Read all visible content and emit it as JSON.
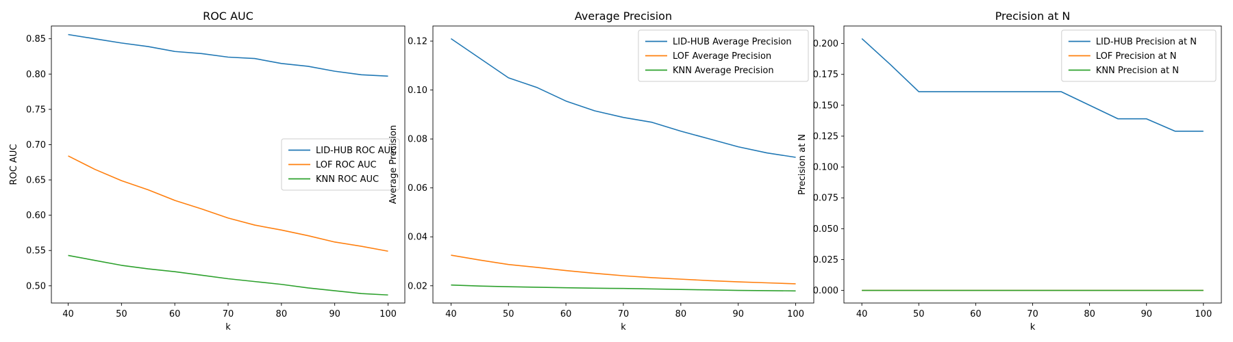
{
  "chart_data": [
    {
      "type": "line",
      "title": "ROC AUC",
      "xlabel": "k",
      "ylabel": "ROC AUC",
      "x": [
        40,
        45,
        50,
        55,
        60,
        65,
        70,
        75,
        80,
        85,
        90,
        95,
        100
      ],
      "xlim": [
        36.85,
        103.15
      ],
      "ylim": [
        0.4756,
        0.8681
      ],
      "xticks": [
        "40",
        "50",
        "60",
        "70",
        "80",
        "90",
        "100"
      ],
      "yticks": [
        "0.50",
        "0.55",
        "0.60",
        "0.65",
        "0.70",
        "0.75",
        "0.80",
        "0.85"
      ],
      "legend_loc": "center-right",
      "series": [
        {
          "name": "LID-HUB ROC AUC",
          "color": "#1f77b4",
          "values": [
            0.856,
            0.85,
            0.844,
            0.839,
            0.832,
            0.829,
            0.824,
            0.822,
            0.815,
            0.811,
            0.804,
            0.799,
            0.797
          ]
        },
        {
          "name": "LOF ROC AUC",
          "color": "#ff7f0e",
          "values": [
            0.684,
            0.665,
            0.649,
            0.636,
            0.621,
            0.609,
            0.596,
            0.586,
            0.579,
            0.571,
            0.562,
            0.556,
            0.549
          ]
        },
        {
          "name": "KNN ROC AUC",
          "color": "#2ca02c",
          "values": [
            0.543,
            0.536,
            0.529,
            0.524,
            0.52,
            0.515,
            0.51,
            0.506,
            0.502,
            0.497,
            0.493,
            0.489,
            0.487
          ]
        }
      ]
    },
    {
      "type": "line",
      "title": "Average Precision",
      "xlabel": "k",
      "ylabel": "Average Precision",
      "x": [
        40,
        45,
        50,
        55,
        60,
        65,
        70,
        75,
        80,
        85,
        90,
        95,
        100
      ],
      "xlim": [
        36.85,
        103.15
      ],
      "ylim": [
        0.01295,
        0.12617
      ],
      "xticks": [
        "40",
        "50",
        "60",
        "70",
        "80",
        "90",
        "100"
      ],
      "yticks": [
        "0.02",
        "0.04",
        "0.06",
        "0.08",
        "0.10",
        "0.12"
      ],
      "legend_loc": "upper-right",
      "series": [
        {
          "name": "LID-HUB Average Precision",
          "color": "#1f77b4",
          "values": [
            0.121,
            0.113,
            0.105,
            0.101,
            0.0955,
            0.0915,
            0.0888,
            0.0868,
            0.0832,
            0.08,
            0.0768,
            0.0743,
            0.0725
          ]
        },
        {
          "name": "LOF Average Precision",
          "color": "#ff7f0e",
          "values": [
            0.0325,
            0.0305,
            0.0287,
            0.0275,
            0.0262,
            0.0251,
            0.0241,
            0.0233,
            0.0227,
            0.0221,
            0.0216,
            0.0212,
            0.0208
          ]
        },
        {
          "name": "KNN Average Precision",
          "color": "#2ca02c",
          "values": [
            0.0203,
            0.0199,
            0.0196,
            0.0194,
            0.0192,
            0.019,
            0.0189,
            0.0187,
            0.0185,
            0.0183,
            0.0181,
            0.018,
            0.0179
          ]
        }
      ]
    },
    {
      "type": "line",
      "title": "Precision at N",
      "xlabel": "k",
      "ylabel": "Precision at N",
      "x": [
        40,
        45,
        50,
        55,
        60,
        65,
        70,
        75,
        80,
        85,
        90,
        95,
        100
      ],
      "xlim": [
        36.85,
        103.15
      ],
      "ylim": [
        -0.0102,
        0.2142
      ],
      "xticks": [
        "40",
        "50",
        "60",
        "70",
        "80",
        "90",
        "100"
      ],
      "yticks": [
        "0.000",
        "0.025",
        "0.050",
        "0.075",
        "0.100",
        "0.125",
        "0.150",
        "0.175",
        "0.200"
      ],
      "legend_loc": "upper-right",
      "series": [
        {
          "name": "LID-HUB Precision at N",
          "color": "#1f77b4",
          "values": [
            0.204,
            0.183,
            0.161,
            0.161,
            0.161,
            0.161,
            0.161,
            0.161,
            0.15,
            0.139,
            0.139,
            0.129,
            0.129
          ]
        },
        {
          "name": "LOF Precision at N",
          "color": "#ff7f0e",
          "values": [
            0,
            0,
            0,
            0,
            0,
            0,
            0,
            0,
            0,
            0,
            0,
            0,
            0
          ]
        },
        {
          "name": "KNN Precision at N",
          "color": "#2ca02c",
          "values": [
            0,
            0,
            0,
            0,
            0,
            0,
            0,
            0,
            0,
            0,
            0,
            0,
            0
          ]
        }
      ]
    }
  ]
}
